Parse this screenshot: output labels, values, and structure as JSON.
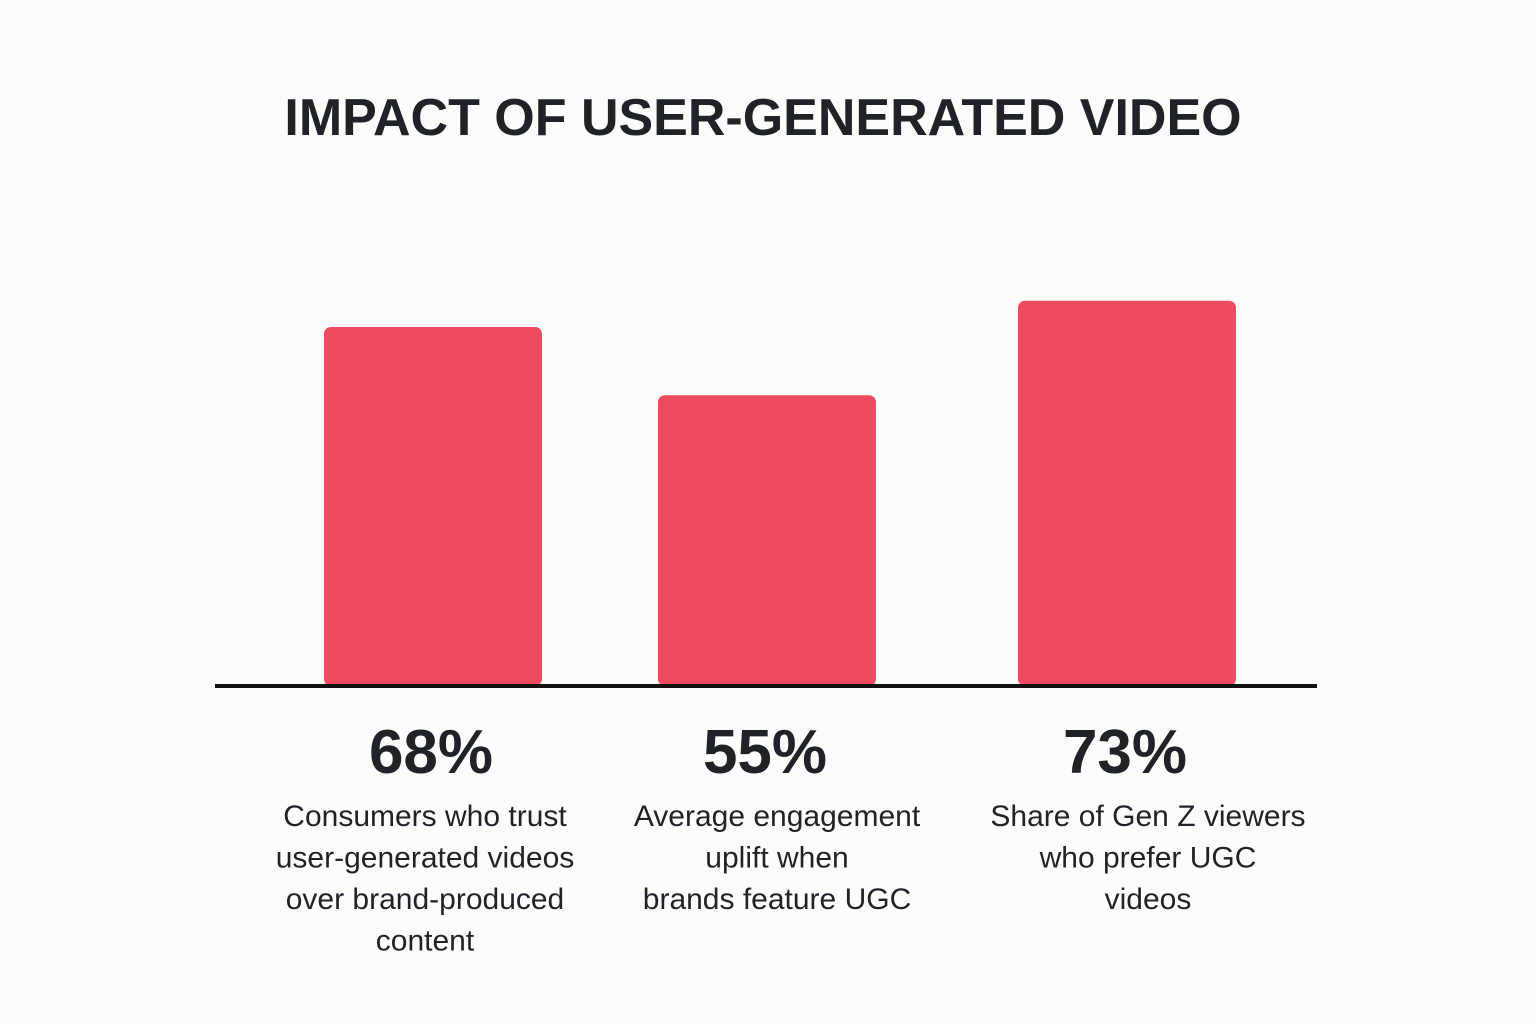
{
  "chart_data": {
    "type": "bar",
    "title": "IMPACT OF USER-GENERATED VIDEO",
    "xlabel": "",
    "ylabel": "",
    "categories": [
      [
        "Consumers who trust",
        "user-generated videos",
        "over brand-produced",
        "content"
      ],
      [
        "Average engagement",
        "uplift when",
        "brands feature UGC"
      ],
      [
        "Share of Gen Z viewers",
        "who prefer UGC",
        "videos"
      ]
    ],
    "values": [
      68,
      55,
      73
    ],
    "value_labels": [
      "68%",
      "55%",
      "73%"
    ],
    "ylim": [
      0,
      100
    ],
    "grid": false,
    "legend": "none",
    "bar_color": "#ee4b5e",
    "axis_color": "#111111"
  }
}
